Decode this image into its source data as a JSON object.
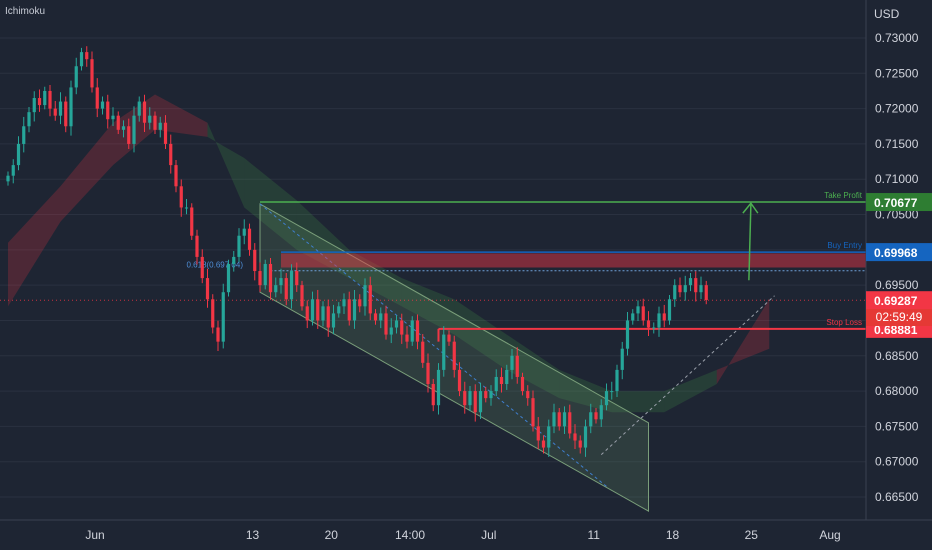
{
  "chart_data": {
    "type": "candlestick",
    "indicator": "Ichimoku",
    "currency": "USD",
    "countdown": "02:59:49",
    "ylim": [
      0.662,
      0.7325
    ],
    "y_ticks": [
      "0.73000",
      "0.72500",
      "0.72000",
      "0.71500",
      "0.71000",
      "0.70500",
      "0.70000",
      "0.69500",
      "0.69000",
      "0.68500",
      "0.68000",
      "0.67500",
      "0.67000",
      "0.66500"
    ],
    "x_ticks": [
      {
        "label": "Jun",
        "i": 8
      },
      {
        "label": "13",
        "i": 38
      },
      {
        "label": "20",
        "i": 53
      },
      {
        "label": "14:00",
        "i": 68
      },
      {
        "label": "Jul",
        "i": 83
      },
      {
        "label": "11",
        "i": 103
      },
      {
        "label": "18",
        "i": 118
      },
      {
        "label": "25",
        "i": 133
      },
      {
        "label": "Aug",
        "i": 148
      }
    ],
    "closes": [
      0.7105,
      0.712,
      0.715,
      0.7175,
      0.7195,
      0.7215,
      0.7205,
      0.7225,
      0.72,
      0.719,
      0.721,
      0.7175,
      0.723,
      0.726,
      0.728,
      0.727,
      0.723,
      0.72,
      0.721,
      0.7185,
      0.719,
      0.717,
      0.7175,
      0.715,
      0.719,
      0.721,
      0.718,
      0.719,
      0.717,
      0.718,
      0.715,
      0.712,
      0.709,
      0.706,
      0.706,
      0.702,
      0.699,
      0.696,
      0.693,
      0.689,
      0.687,
      0.694,
      0.698,
      0.699,
      0.702,
      0.703,
      0.7,
      0.697,
      0.695,
      0.698,
      0.694,
      0.695,
      0.696,
      0.693,
      0.697,
      0.695,
      0.692,
      0.69,
      0.693,
      0.69,
      0.692,
      0.689,
      0.691,
      0.692,
      0.693,
      0.69,
      0.693,
      0.692,
      0.695,
      0.691,
      0.69,
      0.691,
      0.688,
      0.689,
      0.69,
      0.688,
      0.687,
      0.69,
      0.687,
      0.684,
      0.681,
      0.678,
      0.683,
      0.688,
      0.687,
      0.683,
      0.68,
      0.678,
      0.68,
      0.677,
      0.68,
      0.679,
      0.68,
      0.682,
      0.681,
      0.683,
      0.685,
      0.682,
      0.68,
      0.679,
      0.675,
      0.673,
      0.672,
      0.675,
      0.677,
      0.675,
      0.677,
      0.674,
      0.673,
      0.672,
      0.675,
      0.677,
      0.676,
      0.678,
      0.68,
      0.68,
      0.683,
      0.686,
      0.69,
      0.691,
      0.692,
      0.69,
      0.689,
      0.689,
      0.691,
      0.69,
      0.693,
      0.695,
      0.694,
      0.695,
      0.696,
      0.694,
      0.695,
      0.6929
    ],
    "ichimoku_cloud": [
      {
        "i": 0,
        "a": 0.692,
        "b": 0.701
      },
      {
        "i": 10,
        "a": 0.704,
        "b": 0.709
      },
      {
        "i": 20,
        "a": 0.712,
        "b": 0.718
      },
      {
        "i": 28,
        "a": 0.717,
        "b": 0.722
      },
      {
        "i": 38,
        "a": 0.716,
        "b": 0.718
      },
      {
        "i": 45,
        "a": 0.713,
        "b": 0.706
      },
      {
        "i": 55,
        "a": 0.707,
        "b": 0.7
      },
      {
        "i": 65,
        "a": 0.7,
        "b": 0.696
      },
      {
        "i": 75,
        "a": 0.696,
        "b": 0.692
      },
      {
        "i": 85,
        "a": 0.693,
        "b": 0.688
      },
      {
        "i": 95,
        "a": 0.688,
        "b": 0.683
      },
      {
        "i": 105,
        "a": 0.683,
        "b": 0.679
      },
      {
        "i": 115,
        "a": 0.68,
        "b": 0.677
      },
      {
        "i": 125,
        "a": 0.68,
        "b": 0.677
      },
      {
        "i": 135,
        "a": 0.683,
        "b": 0.681
      },
      {
        "i": 145,
        "a": 0.686,
        "b": 0.693
      }
    ],
    "channel": {
      "upper": [
        {
          "i": 48,
          "y": 0.7065
        },
        {
          "i": 122,
          "y": 0.6755
        }
      ],
      "lower": [
        {
          "i": 48,
          "y": 0.694
        },
        {
          "i": 122,
          "y": 0.663
        }
      ]
    },
    "resistance_zone": [
      0.6975,
      0.6995
    ],
    "fib_label": "0.618(0.697 04)",
    "levels": [
      {
        "name": "Take Profit",
        "value": 0.70677,
        "label": "0.70677",
        "color": "#4caf50"
      },
      {
        "name": "Buy Entry",
        "value": 0.69968,
        "label": "0.69968",
        "color": "#1565c0"
      },
      {
        "name": "Stop Loss",
        "value": 0.68881,
        "label": "0.68881",
        "color": "#f23645"
      }
    ],
    "current_price": {
      "value": 0.69287,
      "label": "0.69287",
      "color": "#f23645"
    },
    "up_color": "#26a69a",
    "down_color": "#f23645"
  }
}
